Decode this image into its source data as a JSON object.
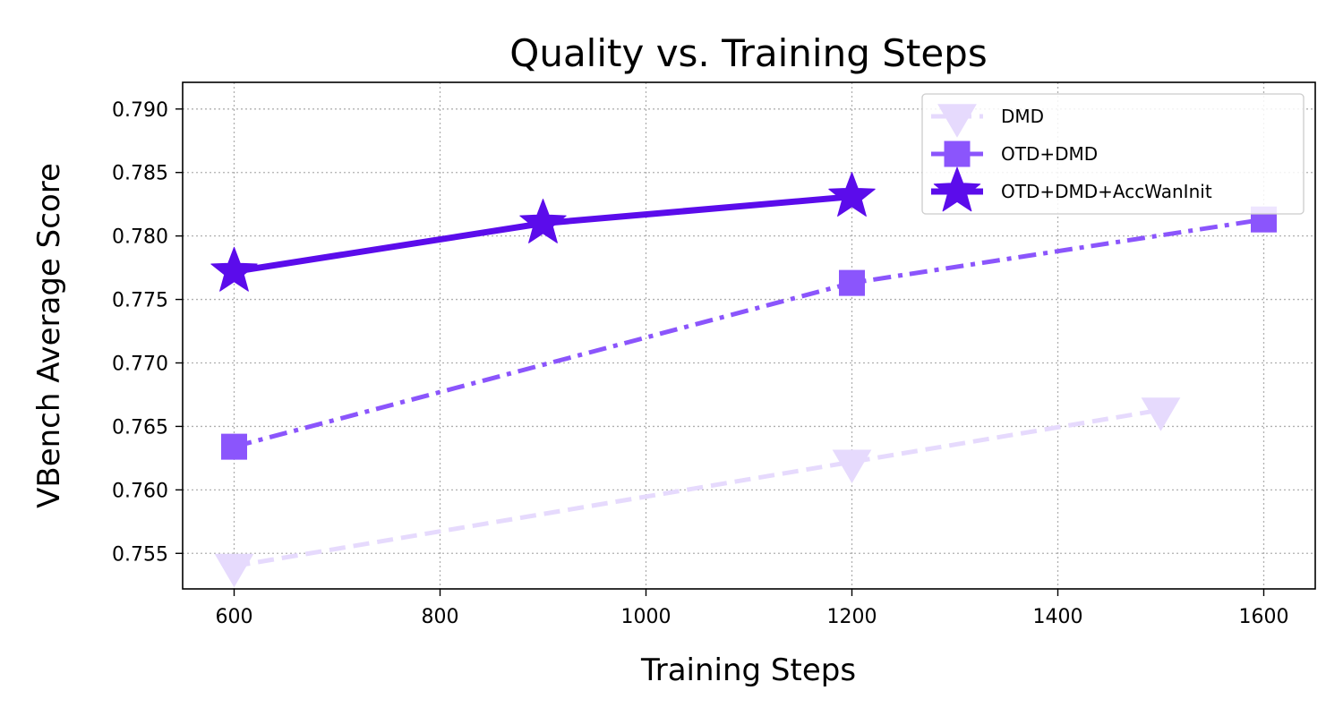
{
  "chart_data": {
    "type": "line",
    "title": "Quality vs. Training Steps",
    "xlabel": "Training Steps",
    "ylabel": "VBench Average Score",
    "xlim": [
      550,
      1650
    ],
    "ylim": [
      0.7522,
      0.7921
    ],
    "xticks": [
      600,
      800,
      1000,
      1200,
      1400,
      1600
    ],
    "yticks": [
      0.755,
      0.76,
      0.765,
      0.77,
      0.775,
      0.78,
      0.785,
      0.79
    ],
    "ytick_labels": [
      "0.755",
      "0.760",
      "0.765",
      "0.770",
      "0.775",
      "0.780",
      "0.785",
      "0.790"
    ],
    "grid": true,
    "legend_position": "top-right",
    "series": [
      {
        "name": "DMD",
        "color": "#e6dafd",
        "line_style": "dashed",
        "marker": "triangle-down",
        "x": [
          600,
          1200,
          1500
        ],
        "y": [
          0.754,
          0.7622,
          0.7663
        ]
      },
      {
        "name": "OTD+DMD",
        "color": "#8b55fc",
        "line_style": "dash-dot",
        "marker": "square",
        "x": [
          600,
          1200,
          1600
        ],
        "y": [
          0.7634,
          0.7763,
          0.7813
        ]
      },
      {
        "name": "OTD+DMD+AccWanInit",
        "color": "#5b0ceb",
        "line_style": "solid",
        "marker": "star",
        "x": [
          600,
          900,
          1200
        ],
        "y": [
          0.7772,
          0.781,
          0.7831
        ]
      }
    ]
  }
}
